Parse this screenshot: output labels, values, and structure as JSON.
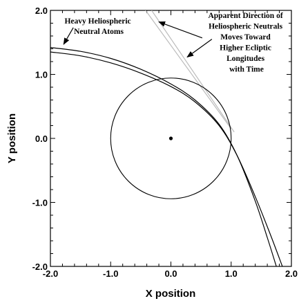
{
  "chart_data": {
    "type": "line",
    "xlabel": "X position",
    "ylabel": "Y position",
    "xlim": [
      -2.0,
      2.0
    ],
    "ylim": [
      -2.0,
      2.0
    ],
    "x_ticks": [
      {
        "value": -2.0,
        "label": "-2.0"
      },
      {
        "value": -1.0,
        "label": "-1.0"
      },
      {
        "value": 0.0,
        "label": "0.0"
      },
      {
        "value": 1.0,
        "label": "1.0"
      },
      {
        "value": 2.0,
        "label": "2.0"
      }
    ],
    "y_ticks": [
      {
        "value": -2.0,
        "label": "-2.0"
      },
      {
        "value": -1.0,
        "label": "-1.0"
      },
      {
        "value": 0.0,
        "label": "0.0"
      },
      {
        "value": 1.0,
        "label": "1.0"
      },
      {
        "value": 2.0,
        "label": "2.0"
      }
    ],
    "grid": false,
    "circle": {
      "center": [
        0.0,
        0.0
      ],
      "radius": 1.0
    },
    "sun": {
      "x": 0.0,
      "y": 0.0
    },
    "series": [
      {
        "color": "#000000",
        "x": [
          -2.0,
          -1.5,
          -1.0,
          -0.5,
          0.0,
          0.4,
          0.8,
          1.1,
          1.4,
          1.6,
          1.75
        ],
        "y": [
          1.42,
          1.36,
          1.25,
          1.08,
          0.85,
          0.6,
          0.22,
          -0.27,
          -0.98,
          -1.55,
          -2.0
        ]
      },
      {
        "color": "#000000",
        "x": [
          -2.0,
          -1.5,
          -1.0,
          -0.5,
          0.0,
          0.4,
          0.8,
          1.1,
          1.4,
          1.65,
          1.85
        ],
        "y": [
          1.35,
          1.29,
          1.18,
          1.02,
          0.81,
          0.57,
          0.2,
          -0.27,
          -0.91,
          -1.5,
          -2.0
        ]
      },
      {
        "color": "#bbbbbb",
        "x": [
          -0.42,
          1.0
        ],
        "y": [
          2.0,
          0.15
        ]
      },
      {
        "color": "#bbbbbb",
        "x": [
          -0.32,
          1.05
        ],
        "y": [
          2.0,
          0.1
        ]
      }
    ],
    "annotations": [
      {
        "lines": [
          "Heavy Heliospheric",
          "Neutral Atoms"
        ],
        "arrows": [
          {
            "from": [
              -1.62,
              1.73
            ],
            "to": [
              -1.78,
              1.47
            ]
          }
        ]
      },
      {
        "lines": [
          "Apparent Direction of",
          "Heliospheric Neutrals",
          "Moves Toward",
          "Higher Ecliptic",
          "Longitudes",
          "with Time"
        ],
        "arrows": [
          {
            "from": [
              0.52,
              1.57
            ],
            "to": [
              -0.2,
              1.82
            ]
          },
          {
            "from": [
              0.68,
              1.55
            ],
            "to": [
              0.27,
              1.27
            ]
          }
        ]
      }
    ]
  }
}
